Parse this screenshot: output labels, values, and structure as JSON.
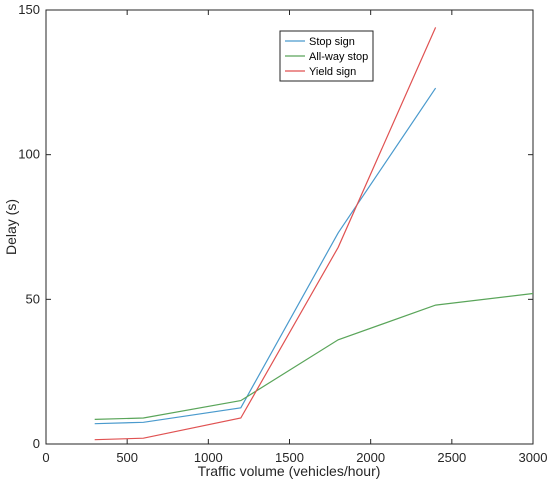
{
  "chart_data": {
    "type": "line",
    "xlabel": "Traffic volume (vehicles/hour)",
    "ylabel": "Delay (s)",
    "xlim": [
      0,
      3000
    ],
    "ylim": [
      0,
      150
    ],
    "xticks": [
      0,
      500,
      1000,
      1500,
      2000,
      2500,
      3000
    ],
    "yticks": [
      0,
      50,
      100,
      150
    ],
    "grid": false,
    "legend_position": "top-center",
    "series": [
      {
        "name": "Stop sign",
        "color": "#4a9acd",
        "x": [
          300,
          600,
          1200,
          1800,
          2400
        ],
        "y": [
          7,
          7.5,
          12.5,
          73,
          123
        ]
      },
      {
        "name": "All-way stop",
        "color": "#5aa55a",
        "x": [
          300,
          600,
          1200,
          1800,
          2400,
          3000
        ],
        "y": [
          8.5,
          9,
          15,
          36,
          48,
          52
        ]
      },
      {
        "name": "Yield sign",
        "color": "#e05252",
        "x": [
          300,
          600,
          1200,
          1800,
          2400
        ],
        "y": [
          1.5,
          2,
          9,
          68,
          144
        ]
      }
    ]
  }
}
